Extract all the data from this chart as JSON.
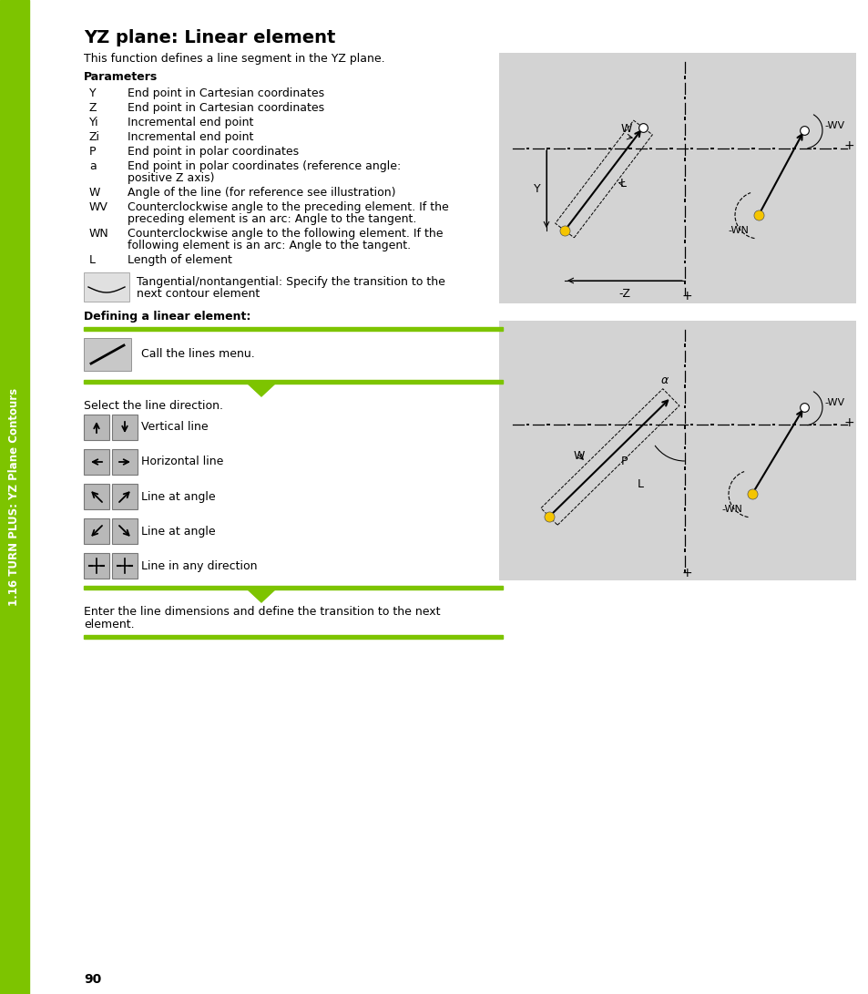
{
  "title": "YZ plane: Linear element",
  "subtitle": "This function defines a line segment in the YZ plane.",
  "sidebar_text": "1.16 TURN PLUS: YZ Plane Contours",
  "params_header": "Parameters",
  "params": [
    [
      "Y",
      "End point in Cartesian coordinates"
    ],
    [
      "Z",
      "End point in Cartesian coordinates"
    ],
    [
      "Yi",
      "Incremental end point"
    ],
    [
      "Zi",
      "Incremental end point"
    ],
    [
      "P",
      "End point in polar coordinates"
    ],
    [
      "a",
      "End point in polar coordinates (reference angle:\npositive Z axis)"
    ],
    [
      "W",
      "Angle of the line (for reference see illustration)"
    ],
    [
      "WV",
      "Counterclockwise angle to the preceding element. If the\npreceding element is an arc: Angle to the tangent."
    ],
    [
      "WN",
      "Counterclockwise angle to the following element. If the\nfollowing element is an arc: Angle to the tangent."
    ],
    [
      "L",
      "Length of element"
    ]
  ],
  "tangential_text": "Tangential/nontangential: Specify the transition to the\nnext contour element",
  "defining_header": "Defining a linear element:",
  "step1_text": "Call the lines menu.",
  "step2_header": "Select the line direction.",
  "line_options": [
    "Vertical line",
    "Horizontal line",
    "Line at angle",
    "Line at angle",
    "Line in any direction"
  ],
  "step3_text": "Enter the line dimensions and define the transition to the next\nelement.",
  "page_number": "90",
  "sidebar_bg": "#7dc400",
  "diagram_bg": "#d3d3d3",
  "body_bg": "#ffffff",
  "green_line": "#7dc400"
}
